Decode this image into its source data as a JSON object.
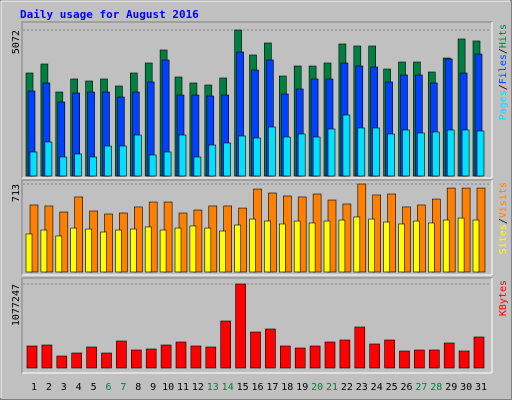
{
  "chart_data": [
    {
      "type": "bar",
      "title": "Daily usage for August 2016",
      "ylim": [
        0,
        5072
      ],
      "yticks": [
        5072
      ],
      "legend_separator": "/",
      "series": [
        {
          "name": "Hits",
          "color": "#008040",
          "values": [
            3578,
            3891,
            2918,
            3370,
            3300,
            3370,
            3127,
            3578,
            3926,
            4377,
            3439,
            3231,
            3161,
            3405,
            5072,
            4204,
            4620,
            3474,
            3821,
            3821,
            3926,
            4586,
            4516,
            4516,
            3717,
            3960,
            3960,
            3613,
            4099,
            4759,
            4690
          ]
        },
        {
          "name": "Files",
          "color": "#0040ff",
          "values": [
            2953,
            3231,
            2571,
            2883,
            2918,
            2918,
            2744,
            2918,
            3266,
            4030,
            2814,
            2814,
            2779,
            2814,
            4308,
            3682,
            4030,
            2849,
            3022,
            3370,
            3370,
            3926,
            3821,
            3787,
            3266,
            3509,
            3509,
            3231,
            4064,
            3578,
            4238
          ]
        },
        {
          "name": "Pages",
          "color": "#00e0ff",
          "values": [
            834,
            1181,
            660,
            764,
            660,
            1042,
            1042,
            1424,
            730,
            834,
            1424,
            660,
            1077,
            1146,
            1390,
            1320,
            1702,
            1355,
            1459,
            1355,
            1633,
            2119,
            1668,
            1668,
            1459,
            1598,
            1494,
            1529,
            1598,
            1598,
            1563
          ]
        }
      ]
    },
    {
      "type": "bar",
      "ylim": [
        0,
        713
      ],
      "yticks": [
        713
      ],
      "legend_separator": "/",
      "series": [
        {
          "name": "Visits",
          "color": "#ff8000",
          "values": [
            543,
            535,
            486,
            608,
            494,
            470,
            478,
            527,
            567,
            567,
            478,
            502,
            535,
            535,
            518,
            672,
            640,
            616,
            608,
            632,
            583,
            551,
            713,
            624,
            632,
            527,
            543,
            591,
            680,
            680,
            680
          ]
        },
        {
          "name": "Sites",
          "color": "#ffff00",
          "values": [
            308,
            340,
            292,
            356,
            348,
            324,
            340,
            348,
            365,
            340,
            356,
            373,
            356,
            332,
            381,
            429,
            413,
            389,
            413,
            397,
            413,
            421,
            446,
            429,
            405,
            389,
            413,
            397,
            421,
            437,
            421
          ]
        }
      ]
    },
    {
      "type": "bar",
      "ylim": [
        0,
        1077247
      ],
      "yticks": [
        1077247
      ],
      "categories": [
        "1",
        "2",
        "3",
        "4",
        "5",
        "6",
        "7",
        "8",
        "9",
        "10",
        "11",
        "12",
        "13",
        "14",
        "15",
        "16",
        "17",
        "18",
        "19",
        "20",
        "21",
        "22",
        "23",
        "24",
        "25",
        "26",
        "27",
        "28",
        "29",
        "30",
        "31"
      ],
      "category_colors": [
        "#000000",
        "#000000",
        "#000000",
        "#000000",
        "#000000",
        "#008040",
        "#008040",
        "#000000",
        "#000000",
        "#000000",
        "#000000",
        "#000000",
        "#008040",
        "#008040",
        "#000000",
        "#000000",
        "#000000",
        "#000000",
        "#000000",
        "#008040",
        "#008040",
        "#000000",
        "#000000",
        "#000000",
        "#000000",
        "#000000",
        "#008040",
        "#008040",
        "#000000",
        "#000000",
        "#000000"
      ],
      "series": [
        {
          "name": "KBytes",
          "color": "#ff0000",
          "values": [
            282132,
            294952,
            153888,
            192360,
            269304,
            192360,
            346248,
            230832,
            243656,
            294952,
            333424,
            282132,
            269304,
            602728,
            1077247,
            461664,
            500136,
            282132,
            256480,
            282132,
            333424,
            359072,
            525784,
            307776,
            359072,
            218008,
            230832,
            230832,
            320600,
            218008,
            397544
          ]
        }
      ]
    }
  ]
}
